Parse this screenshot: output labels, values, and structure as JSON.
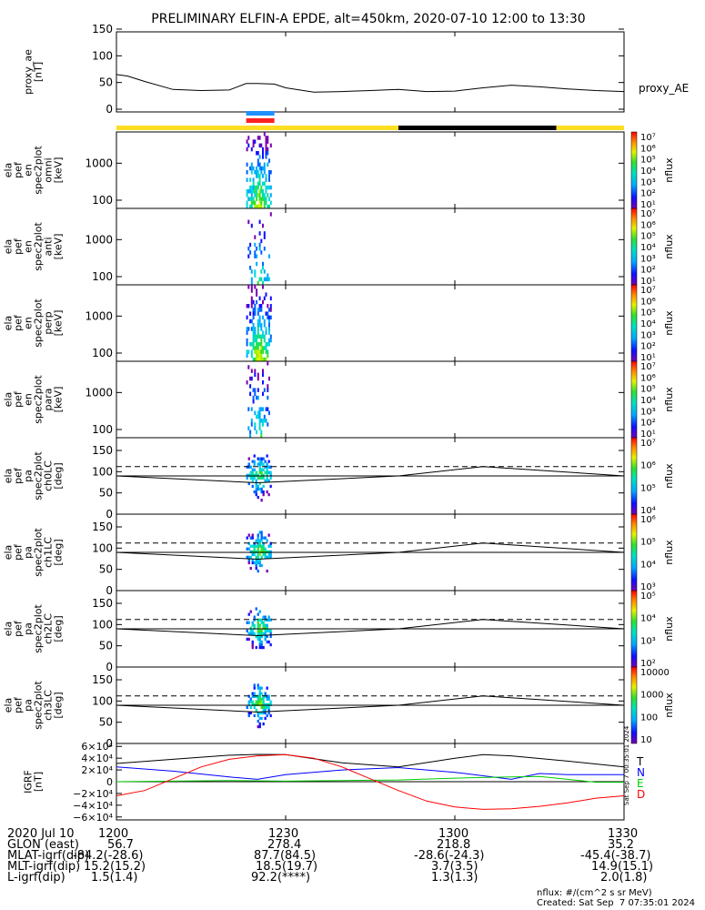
{
  "title": "PRELIMINARY ELFIN-A EPDE, alt=450km, 2020-07-10 12:00 to 13:30",
  "panels": {
    "ae": {
      "ylabel": [
        "proxy_ae",
        "[nT]"
      ],
      "ticks": [
        "150",
        "100",
        "50",
        "0"
      ],
      "legend": "proxy_AE"
    },
    "spec": [
      {
        "ylabel": [
          "ela",
          "pef",
          "en",
          "spec2plot",
          "omni",
          "[keV]"
        ],
        "ticks": [
          "1000",
          "100"
        ]
      },
      {
        "ylabel": [
          "ela",
          "pef",
          "en",
          "spec2plot",
          "anti",
          "[keV]"
        ],
        "ticks": [
          "1000",
          "100"
        ]
      },
      {
        "ylabel": [
          "ela",
          "pef",
          "en",
          "spec2plot",
          "perp",
          "[keV]"
        ],
        "ticks": [
          "1000",
          "100"
        ]
      },
      {
        "ylabel": [
          "ela",
          "pef",
          "en",
          "spec2plot",
          "para",
          "[keV]"
        ],
        "ticks": [
          "1000",
          "100"
        ]
      }
    ],
    "pa": [
      {
        "ylabel": [
          "ela",
          "pef",
          "pa",
          "spec2plot",
          "ch0LC",
          "[deg]"
        ],
        "ticks": [
          "150",
          "100",
          "50",
          "0"
        ]
      },
      {
        "ylabel": [
          "ela",
          "pef",
          "pa",
          "spec2plot",
          "ch1LC",
          "[deg]"
        ],
        "ticks": [
          "150",
          "100",
          "50",
          "0"
        ]
      },
      {
        "ylabel": [
          "ela",
          "pef",
          "pa",
          "spec2plot",
          "ch2LC",
          "[deg]"
        ],
        "ticks": [
          "150",
          "100",
          "50",
          "0"
        ]
      },
      {
        "ylabel": [
          "ela",
          "pef",
          "pa",
          "spec2plot",
          "ch3LC",
          "[deg]"
        ],
        "ticks": [
          "150",
          "100",
          "50",
          "0"
        ]
      }
    ],
    "igrf": {
      "ylabel": [
        "IGRF",
        "[nT]"
      ],
      "ticks": [
        "6×10⁴",
        "4×10⁴",
        "2×10⁴",
        "0",
        "−2×10⁴",
        "−4×10⁴",
        "−6×10⁴"
      ],
      "legend": [
        "T",
        "N",
        "E",
        "D"
      ]
    }
  },
  "colorbars": [
    {
      "labels": [
        "10⁷",
        "10⁶",
        "10⁵",
        "10⁴",
        "10³",
        "10²",
        "10¹"
      ],
      "unit": "nflux"
    },
    {
      "labels": [
        "10⁷",
        "10⁶",
        "10⁵",
        "10⁴",
        "10³",
        "10²",
        "10¹"
      ],
      "unit": "nflux"
    },
    {
      "labels": [
        "10⁷",
        "10⁶",
        "10⁵",
        "10⁴",
        "10³",
        "10²",
        "10¹"
      ],
      "unit": "nflux"
    },
    {
      "labels": [
        "10⁷",
        "10⁶",
        "10⁵",
        "10⁴",
        "10³",
        "10²",
        "10¹"
      ],
      "unit": "nflux"
    },
    {
      "labels": [
        "10⁷",
        "10⁶",
        "10⁵",
        "10⁴"
      ],
      "unit": "nflux"
    },
    {
      "labels": [
        "10⁶",
        "10⁵",
        "10⁴",
        "10³"
      ],
      "unit": "nflux"
    },
    {
      "labels": [
        "10⁵",
        "10⁴",
        "10³",
        "10²"
      ],
      "unit": "nflux"
    },
    {
      "labels": [
        "10000",
        "1000",
        "100",
        "10"
      ],
      "unit": "nflux"
    }
  ],
  "colors": {
    "T": "#000000",
    "N": "#0000ff",
    "E": "#00cc00",
    "D": "#ff0000",
    "day": "#ffdd22",
    "night": "#000000",
    "bar_blue": "#1e90ff",
    "bar_red": "#ff2020"
  },
  "side_note": "Sat Sep  7 00:35:01 2024",
  "bottom_rows": [
    [
      "2020 Jul 10",
      "1200",
      "1230",
      "1300",
      "1330"
    ],
    [
      "GLON (east)",
      "56.7",
      "278.4",
      "218.8",
      "35.2"
    ],
    [
      "MLAT-igrf(dip)",
      "-84.2(-28.6)",
      "87.7(84.5)",
      "-28.6(-24.3)",
      "-45.4(-38.7)"
    ],
    [
      "MLT-igrf(dip)",
      "15.2(15.2)",
      "18.5(19.7)",
      "3.7(3.5)",
      "14.9(15.1)"
    ],
    [
      "L-igrf(dip)",
      "1.5(1.4)",
      "92.2(****)",
      "1.3(1.3)",
      "2.0(1.8)"
    ]
  ],
  "footer": {
    "units": "nflux: #/(cm^2 s sr MeV)",
    "created": "Created: Sat Sep  7 07:35:01 2024"
  },
  "chart_data": {
    "type": "line",
    "x_range_min": [
      0,
      90
    ],
    "x_ticks": [
      "1200",
      "1230",
      "1300",
      "1330"
    ],
    "series": [
      {
        "name": "proxy_AE",
        "x": [
          0,
          2,
          5,
          10,
          15,
          20,
          23,
          25,
          28,
          30,
          35,
          40,
          45,
          50,
          55,
          60,
          65,
          70,
          75,
          80,
          85,
          90
        ],
        "y": [
          65,
          62,
          52,
          37,
          35,
          36,
          48,
          48,
          47,
          40,
          32,
          33,
          35,
          37,
          33,
          34,
          40,
          45,
          42,
          38,
          35,
          33
        ]
      },
      {
        "name": "T",
        "x": [
          0,
          10,
          20,
          25,
          30,
          40,
          50,
          60,
          65,
          70,
          80,
          90
        ],
        "y": [
          31000,
          38000,
          45000,
          46500,
          46000,
          32000,
          25000,
          40000,
          46000,
          44000,
          35000,
          25000
        ]
      },
      {
        "name": "N",
        "x": [
          0,
          10,
          20,
          25,
          30,
          40,
          50,
          60,
          65,
          70,
          75,
          80,
          85,
          90
        ],
        "y": [
          25000,
          18000,
          8000,
          4000,
          12000,
          20000,
          24000,
          16000,
          10000,
          4000,
          14000,
          12000,
          12000,
          12000
        ]
      },
      {
        "name": "E",
        "x": [
          0,
          10,
          20,
          30,
          40,
          50,
          60,
          70,
          75,
          80,
          85,
          90
        ],
        "y": [
          0,
          1000,
          2000,
          1000,
          2000,
          3000,
          6000,
          8000,
          9000,
          4000,
          -1000,
          -1000
        ]
      },
      {
        "name": "D",
        "x": [
          0,
          5,
          10,
          15,
          20,
          25,
          30,
          35,
          40,
          45,
          50,
          55,
          60,
          65,
          70,
          75,
          80,
          85,
          90
        ],
        "y": [
          -24000,
          -15000,
          5000,
          25000,
          38000,
          44000,
          46000,
          40000,
          25000,
          5000,
          -15000,
          -33000,
          -43000,
          -47000,
          -46000,
          -42000,
          -36000,
          -28000,
          -24000
        ]
      },
      {
        "name": "lc_solid",
        "x": [
          0,
          25,
          50,
          65,
          90
        ],
        "y": [
          90,
          74,
          90,
          112,
          90
        ]
      }
    ],
    "lc_dashed_deg": 112,
    "ae_ylim": [
      0,
      150
    ],
    "pa_ylim": [
      0,
      180
    ],
    "igrf_ylim": [
      -65000,
      65000
    ],
    "spec_ylim_keV": [
      60,
      7000
    ],
    "sunlight": [
      {
        "x0": 0,
        "x1": 50,
        "state": "day"
      },
      {
        "x0": 50,
        "x1": 78,
        "state": "night"
      },
      {
        "x0": 78,
        "x1": 90,
        "state": "day"
      }
    ],
    "science_zone_bars_min": [
      23,
      28
    ],
    "burst_window_min": [
      23,
      27.5
    ]
  }
}
